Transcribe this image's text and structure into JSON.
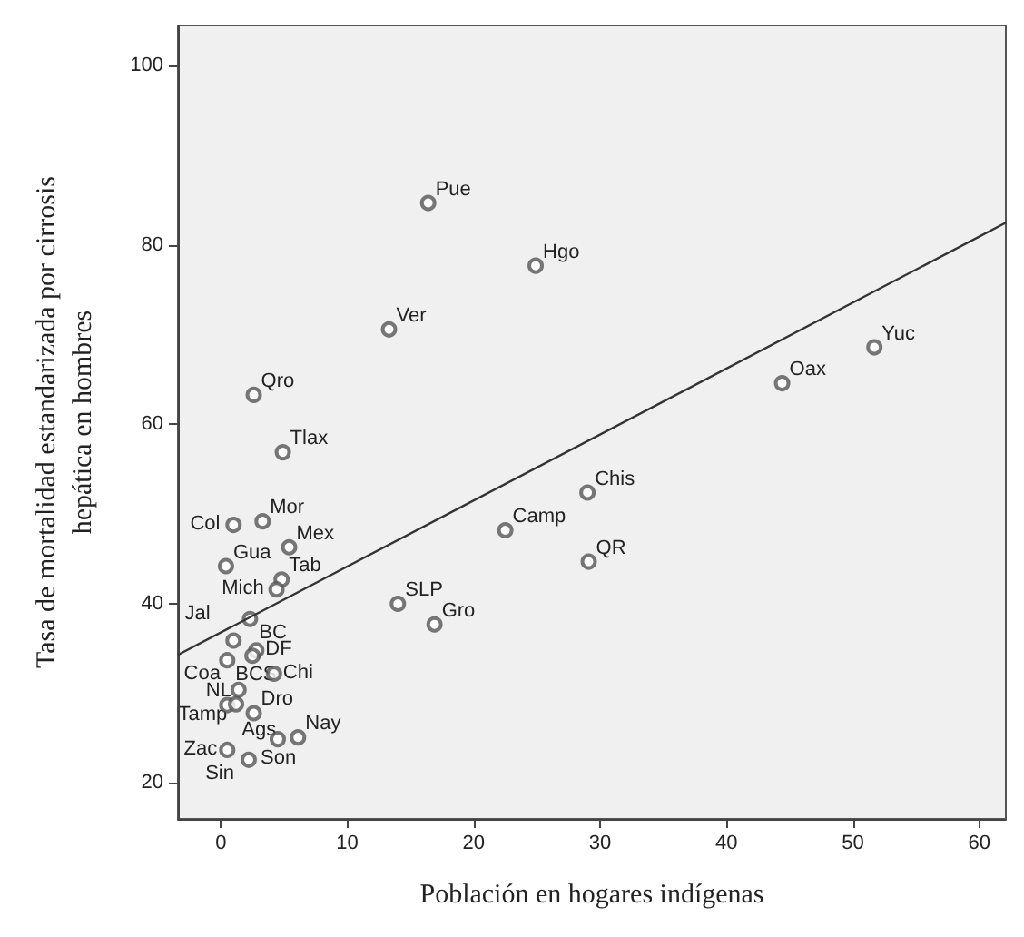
{
  "chart_data": {
    "type": "scatter",
    "xlabel": "Población en hogares indígenas",
    "ylabel": "Tasa de mortalidad estandarizada por cirrosis\nhepática en hombres",
    "xlim": [
      -3.4,
      62.1
    ],
    "xticks": [
      0,
      10,
      20,
      30,
      40,
      50,
      60
    ],
    "ylim": [
      16,
      104.5
    ],
    "yticks": [
      20,
      40,
      60,
      80,
      100
    ],
    "grid": false,
    "series": [
      {
        "marker": "circle",
        "color": "#555555",
        "x": [
          16.4,
          24.9,
          13.3,
          2.6,
          4.9,
          51.7,
          44.4,
          29.0,
          22.5,
          29.1,
          14.0,
          16.9,
          1.0,
          3.3,
          5.4,
          0.4,
          4.8,
          4.4,
          2.3,
          1.0,
          0.5,
          2.8,
          2.5,
          4.2,
          1.4,
          0.5,
          1.2,
          2.6,
          4.5,
          6.1,
          0.5,
          2.2
        ],
        "values": [
          84.7,
          77.7,
          70.6,
          63.3,
          56.9,
          68.6,
          64.6,
          52.4,
          48.2,
          44.7,
          40.0,
          37.7,
          48.8,
          49.2,
          46.3,
          44.2,
          42.7,
          41.6,
          38.3,
          35.9,
          33.7,
          34.8,
          34.2,
          32.2,
          30.4,
          28.7,
          28.8,
          27.8,
          24.9,
          25.1,
          23.7,
          22.6
        ]
      },
      {
        "type": "line",
        "marker": "none",
        "color": "#333333",
        "x": [
          -3.4,
          62.1
        ],
        "values": [
          34.3,
          82.5
        ]
      }
    ],
    "annotations": [
      {
        "text": "Pue",
        "x": 16.4,
        "y": 84.7
      },
      {
        "text": "Hgo",
        "x": 24.9,
        "y": 77.7
      },
      {
        "text": "Ver",
        "x": 13.3,
        "y": 70.6
      },
      {
        "text": "Qro",
        "x": 2.6,
        "y": 63.3
      },
      {
        "text": "Tlax",
        "x": 4.9,
        "y": 56.9
      },
      {
        "text": "Yuc",
        "x": 51.7,
        "y": 68.6
      },
      {
        "text": "Oax",
        "x": 44.4,
        "y": 64.6
      },
      {
        "text": "Chis",
        "x": 29.0,
        "y": 52.4
      },
      {
        "text": "Camp",
        "x": 22.5,
        "y": 48.2
      },
      {
        "text": "QR",
        "x": 29.1,
        "y": 44.7
      },
      {
        "text": "SLP",
        "x": 14.0,
        "y": 40.0
      },
      {
        "text": "Gro",
        "x": 16.9,
        "y": 37.7
      },
      {
        "text": "Col",
        "x": 1.0,
        "y": 48.8
      },
      {
        "text": "Mor",
        "x": 3.3,
        "y": 49.2
      },
      {
        "text": "Mex",
        "x": 5.4,
        "y": 46.3
      },
      {
        "text": "Gua",
        "x": 0.4,
        "y": 44.2
      },
      {
        "text": "Tab",
        "x": 4.8,
        "y": 42.7
      },
      {
        "text": "Mich",
        "x": 4.4,
        "y": 41.6
      },
      {
        "text": "BC",
        "x": 2.3,
        "y": 38.3
      },
      {
        "text": "Jal",
        "x": 1.0,
        "y": 35.9
      },
      {
        "text": "Coa",
        "x": 0.5,
        "y": 33.7
      },
      {
        "text": "DF",
        "x": 2.8,
        "y": 34.8
      },
      {
        "text": "BCS",
        "x": 2.5,
        "y": 34.2
      },
      {
        "text": "Chi",
        "x": 4.2,
        "y": 32.2
      },
      {
        "text": "Tamp",
        "x": 1.4,
        "y": 30.4
      },
      {
        "text": "Ags",
        "x": 0.5,
        "y": 28.7
      },
      {
        "text": "NL",
        "x": 1.2,
        "y": 28.8
      },
      {
        "text": "Dro",
        "x": 2.6,
        "y": 27.8
      },
      {
        "text": "Son",
        "x": 4.5,
        "y": 24.9
      },
      {
        "text": "Nay",
        "x": 6.1,
        "y": 25.1
      },
      {
        "text": "Zac",
        "x": 0.5,
        "y": 23.7
      },
      {
        "text": "Sin",
        "x": 2.2,
        "y": 22.6
      }
    ]
  }
}
